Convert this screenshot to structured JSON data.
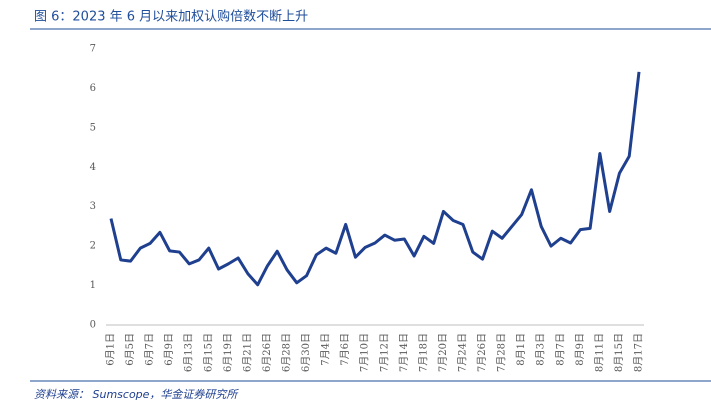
{
  "header": {
    "title": "图 6：2023 年 6 月以来加权认购倍数不断上升"
  },
  "chart_data": {
    "type": "line",
    "categories": [
      "6月1日",
      null,
      "6月5日",
      null,
      "6月7日",
      null,
      "6月9日",
      null,
      "6月13日",
      null,
      "6月15日",
      null,
      "6月19日",
      null,
      "6月21日",
      null,
      "6月26日",
      null,
      "6月28日",
      null,
      "6月30日",
      null,
      "7月4日",
      null,
      "7月6日",
      null,
      "7月10日",
      null,
      "7月12日",
      null,
      "7月14日",
      null,
      "7月18日",
      null,
      "7月20日",
      null,
      "7月24日",
      null,
      "7月26日",
      null,
      "7月28日",
      null,
      "8月1日",
      null,
      "8月3日",
      null,
      "8月7日",
      null,
      "8月9日",
      null,
      "8月11日",
      null,
      "8月15日",
      null,
      "8月17日"
    ],
    "series": [
      {
        "color": "#1f3f8f",
        "values": [
          2.7,
          1.65,
          1.62,
          1.95,
          2.07,
          2.35,
          1.88,
          1.85,
          1.55,
          1.65,
          1.95,
          1.42,
          1.55,
          1.7,
          1.3,
          1.02,
          1.5,
          1.87,
          1.4,
          1.07,
          1.25,
          1.78,
          1.95,
          1.82,
          2.55,
          1.72,
          1.97,
          2.08,
          2.28,
          2.15,
          2.18,
          1.75,
          2.25,
          2.07,
          2.88,
          2.65,
          2.55,
          1.85,
          1.67,
          2.38,
          2.2,
          2.5,
          2.8,
          3.43,
          2.5,
          2.0,
          2.2,
          2.08,
          2.42,
          2.45,
          4.35,
          2.88,
          3.85,
          4.28,
          6.42
        ]
      }
    ],
    "ylim": [
      0,
      7
    ],
    "yticks": [
      0,
      1,
      2,
      3,
      4,
      5,
      6,
      7
    ],
    "grid": false
  },
  "footer": {
    "source": "资料来源： Sumscope，华金证券研究所"
  }
}
